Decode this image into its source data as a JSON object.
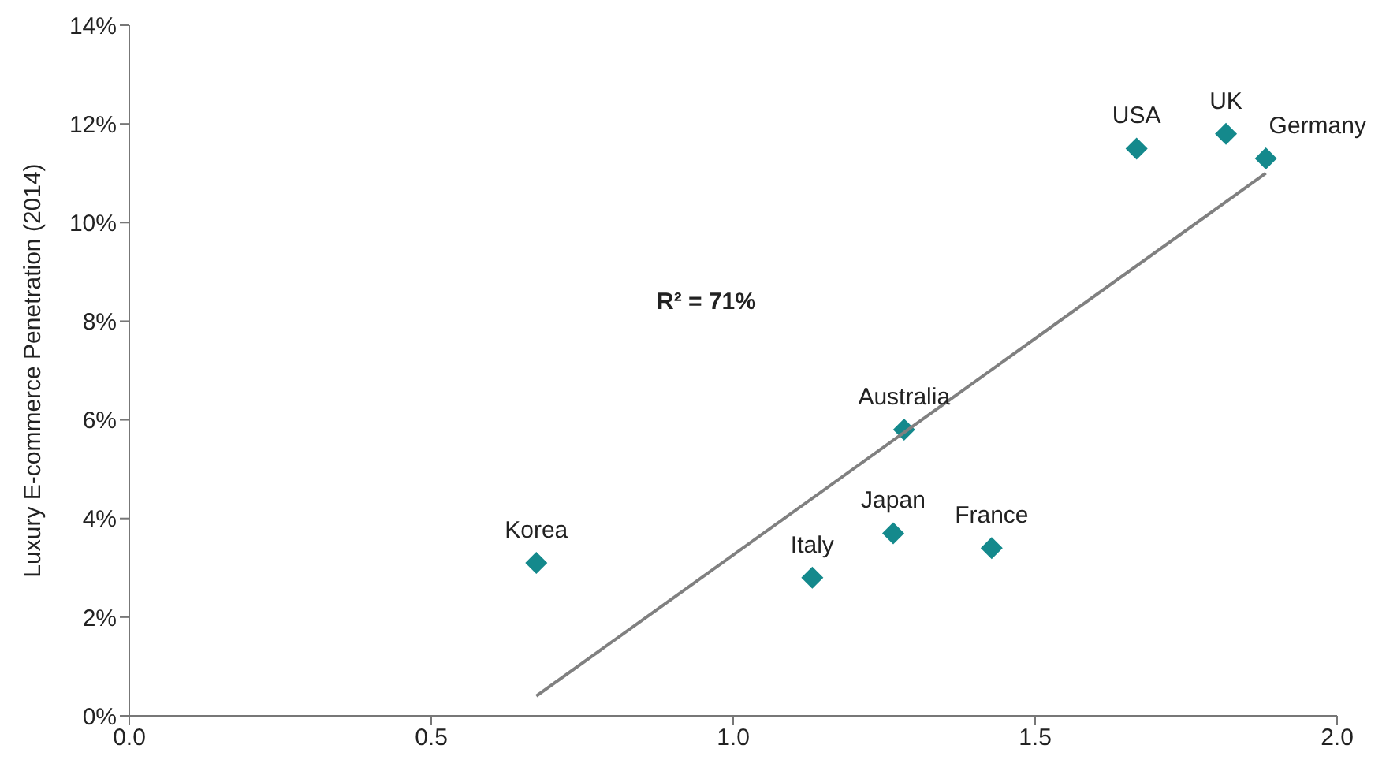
{
  "chart_data": {
    "type": "scatter",
    "ylabel": "Luxury E-commerce Penetration (2014)",
    "xlim": [
      0,
      2
    ],
    "xticks": [
      {
        "value": 0,
        "label": "0.0"
      },
      {
        "value": 0.5,
        "label": "0.5"
      },
      {
        "value": 1,
        "label": "1.0"
      },
      {
        "value": 1.5,
        "label": "1.5"
      },
      {
        "value": 2,
        "label": "2.0"
      }
    ],
    "ylim": [
      0,
      14
    ],
    "yticks": [
      {
        "value": 0,
        "label": "0%"
      },
      {
        "value": 2,
        "label": "2%"
      },
      {
        "value": 4,
        "label": "4%"
      },
      {
        "value": 6,
        "label": "6%"
      },
      {
        "value": 8,
        "label": "8%"
      },
      {
        "value": 10,
        "label": "10%"
      },
      {
        "value": 12,
        "label": "12%"
      },
      {
        "value": 14,
        "label": "14%"
      }
    ],
    "series": [
      {
        "color": "#14898c",
        "marker": "diamond",
        "x": [
          0.674,
          1.131,
          1.265,
          1.428,
          1.283,
          1.668,
          1.816,
          1.882
        ],
        "values": [
          3.1,
          2.8,
          3.7,
          3.4,
          5.8,
          11.5,
          11.8,
          11.3
        ]
      },
      {
        "type": "line",
        "color": "#808080",
        "marker": "none",
        "x": [
          0.674,
          1.882
        ],
        "values": [
          0.4,
          11.0
        ]
      }
    ],
    "annotations": [
      "R² = 71%",
      {
        "text": "Korea",
        "x": 0.674,
        "y": 3.1
      },
      {
        "text": "Italy",
        "x": 1.131,
        "y": 2.8
      },
      {
        "text": "Japan",
        "x": 1.265,
        "y": 3.7
      },
      {
        "text": "France",
        "x": 1.428,
        "y": 3.4
      },
      {
        "text": "Australia",
        "x": 1.283,
        "y": 5.8
      },
      {
        "text": "USA",
        "x": 1.668,
        "y": 11.5
      },
      {
        "text": "UK",
        "x": 1.816,
        "y": 11.8
      },
      {
        "text": "Germany",
        "x": 1.882,
        "y": 11.3
      }
    ]
  }
}
